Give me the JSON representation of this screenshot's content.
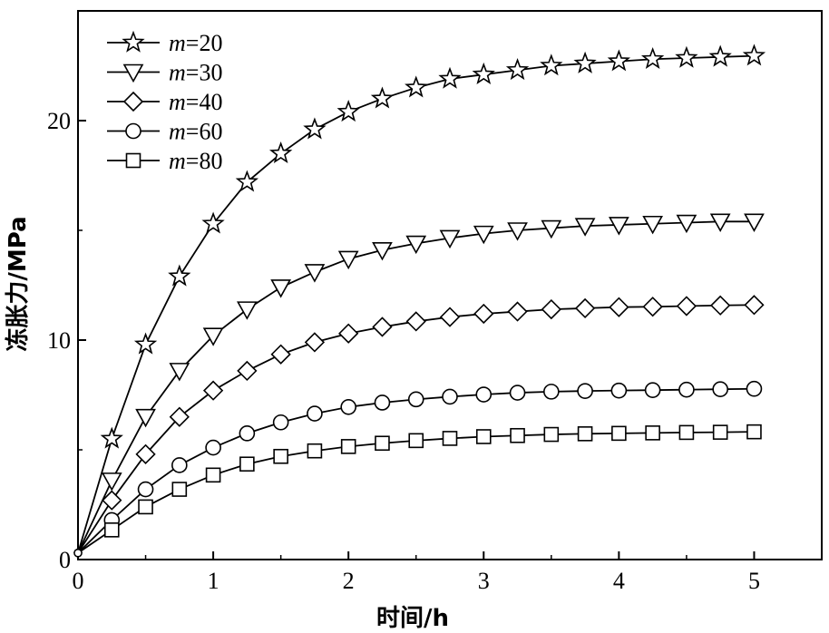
{
  "chart_data": {
    "type": "line",
    "xlabel": "时间/h",
    "ylabel": "冻胀力/MPa",
    "xlim": [
      0,
      5.5
    ],
    "ylim": [
      0,
      25
    ],
    "xticks": [
      0,
      1,
      2,
      3,
      4,
      5
    ],
    "yticks": [
      0,
      10,
      20
    ],
    "x_tick_labels": [
      "0",
      "1",
      "2",
      "3",
      "4",
      "5"
    ],
    "y_tick_labels": [
      "0",
      "10",
      "20"
    ],
    "legend_position": "top-left",
    "grid": false,
    "x": [
      0,
      0.25,
      0.5,
      0.75,
      1.0,
      1.25,
      1.5,
      1.75,
      2.0,
      2.25,
      2.5,
      2.75,
      3.0,
      3.25,
      3.5,
      3.75,
      4.0,
      4.25,
      4.5,
      4.75,
      5.0
    ],
    "series": [
      {
        "label_var": "m",
        "label_value": "=20",
        "marker": "star",
        "values": [
          0.3,
          5.5,
          9.8,
          12.9,
          15.3,
          17.2,
          18.5,
          19.6,
          20.4,
          21.0,
          21.5,
          21.9,
          22.1,
          22.3,
          22.5,
          22.6,
          22.7,
          22.8,
          22.85,
          22.9,
          22.95
        ]
      },
      {
        "label_var": "m",
        "label_value": "=30",
        "marker": "triangle-down",
        "values": [
          0.3,
          3.6,
          6.5,
          8.6,
          10.2,
          11.4,
          12.4,
          13.1,
          13.7,
          14.1,
          14.4,
          14.65,
          14.85,
          15.0,
          15.1,
          15.2,
          15.25,
          15.3,
          15.35,
          15.4,
          15.4
        ]
      },
      {
        "label_var": "m",
        "label_value": "=40",
        "marker": "diamond",
        "values": [
          0.3,
          2.7,
          4.8,
          6.5,
          7.7,
          8.6,
          9.35,
          9.9,
          10.3,
          10.6,
          10.85,
          11.05,
          11.2,
          11.3,
          11.4,
          11.45,
          11.5,
          11.52,
          11.55,
          11.58,
          11.6
        ]
      },
      {
        "label_var": "m",
        "label_value": "=60",
        "marker": "circle",
        "values": [
          0.3,
          1.8,
          3.2,
          4.3,
          5.1,
          5.75,
          6.25,
          6.65,
          6.95,
          7.15,
          7.3,
          7.42,
          7.52,
          7.6,
          7.65,
          7.68,
          7.7,
          7.72,
          7.74,
          7.76,
          7.78
        ]
      },
      {
        "label_var": "m",
        "label_value": "=80",
        "marker": "square",
        "values": [
          0.3,
          1.35,
          2.4,
          3.2,
          3.85,
          4.35,
          4.7,
          4.95,
          5.15,
          5.3,
          5.42,
          5.52,
          5.6,
          5.65,
          5.7,
          5.73,
          5.75,
          5.77,
          5.79,
          5.8,
          5.82
        ]
      }
    ]
  }
}
